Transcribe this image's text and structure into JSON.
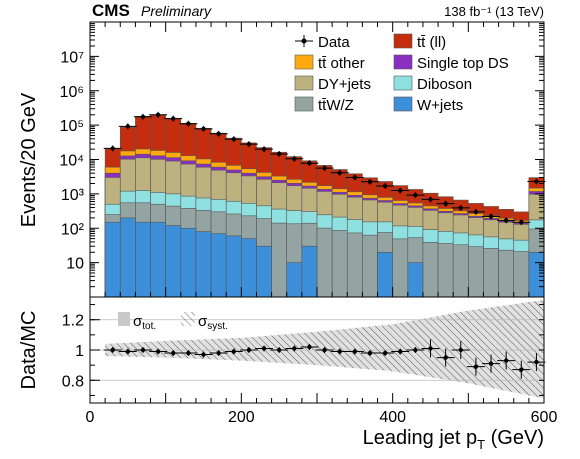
{
  "header": {
    "cms": "CMS",
    "preliminary": "Preliminary",
    "lumi": "138 fb⁻¹ (13 TeV)"
  },
  "colors": {
    "ttbar_ll": "#c42e0e",
    "single_top_ds": "#8a2fc0",
    "diboson": "#8fe0e0",
    "w_jets": "#3c8fd8",
    "tt_other": "#ffa90e",
    "dy_jets": "#bdb17f",
    "ttWZ": "#94a4a2",
    "unc_tot": "#c8c8c8"
  },
  "chart_data": [
    {
      "type": "bar",
      "stacked": true,
      "xlabel": "Leading jet pT (GeV)",
      "ylabel": "Events/20 GeV",
      "xlim": [
        0,
        600
      ],
      "ylim": [
        1,
        100000000
      ],
      "y_scale": "log",
      "y_tick_labels": [
        "10",
        "10²",
        "10³",
        "10⁴",
        "10⁵",
        "10⁶",
        "10⁷"
      ],
      "x_bin_edges": [
        20,
        40,
        60,
        80,
        100,
        120,
        140,
        160,
        180,
        200,
        220,
        240,
        260,
        280,
        300,
        320,
        340,
        360,
        380,
        400,
        420,
        440,
        460,
        480,
        500,
        520,
        540,
        560,
        580,
        600
      ],
      "legend_position": "top-right",
      "series": [
        {
          "name": "W+jets",
          "color": "#3c8fd8",
          "values": [
            150,
            200,
            150,
            150,
            120,
            100,
            80,
            70,
            60,
            50,
            30,
            1,
            10,
            30,
            1,
            1,
            1,
            1,
            20,
            1,
            10,
            1,
            1,
            1,
            1,
            1,
            1,
            1,
            20
          ]
        },
        {
          "name": "tt̄W/Z",
          "color": "#94a4a2",
          "values": [
            100,
            350,
            400,
            350,
            320,
            280,
            250,
            230,
            200,
            180,
            160,
            140,
            125,
            110,
            100,
            85,
            72,
            62,
            55,
            48,
            43,
            38,
            35,
            32,
            28,
            25,
            22,
            20,
            75
          ]
        },
        {
          "name": "Diboson",
          "color": "#8fe0e0",
          "values": [
            250,
            650,
            700,
            600,
            560,
            480,
            430,
            390,
            350,
            300,
            260,
            220,
            190,
            165,
            145,
            125,
            105,
            90,
            78,
            68,
            60,
            52,
            45,
            40,
            35,
            30,
            26,
            24,
            80
          ]
        },
        {
          "name": "DY+jets",
          "color": "#bdb17f",
          "values": [
            2500,
            9000,
            10000,
            9000,
            8000,
            6500,
            5200,
            4200,
            3500,
            2800,
            2200,
            1750,
            1400,
            1150,
            930,
            760,
            620,
            510,
            420,
            350,
            290,
            240,
            200,
            170,
            140,
            120,
            100,
            85,
            800
          ]
        },
        {
          "name": "Single top DS",
          "color": "#8a2fc0",
          "values": [
            1000,
            2500,
            3000,
            2700,
            2300,
            1800,
            1400,
            1100,
            850,
            650,
            500,
            380,
            300,
            230,
            180,
            140,
            110,
            85,
            68,
            55,
            45,
            37,
            30,
            25,
            20,
            17,
            14,
            12,
            200
          ]
        },
        {
          "name": "tt̄ other",
          "color": "#ffa90e",
          "values": [
            2000,
            5000,
            6000,
            5500,
            4700,
            3800,
            3000,
            2300,
            1800,
            1400,
            1050,
            800,
            620,
            480,
            380,
            300,
            240,
            190,
            150,
            120,
            95,
            78,
            65,
            53,
            44,
            38,
            32,
            27,
            300
          ]
        },
        {
          "name": "tt̄ (ll)",
          "color": "#c42e0e",
          "values": [
            15000,
            70000,
            160000,
            180000,
            140000,
            100000,
            70000,
            50000,
            35000,
            25000,
            18000,
            13000,
            9500,
            7000,
            5000,
            3700,
            2700,
            2000,
            1500,
            1100,
            800,
            600,
            450,
            340,
            260,
            200,
            160,
            130,
            1500
          ]
        }
      ],
      "data": {
        "name": "Data",
        "x": [
          30,
          50,
          70,
          90,
          110,
          130,
          150,
          170,
          190,
          210,
          230,
          250,
          270,
          290,
          310,
          330,
          350,
          370,
          390,
          410,
          430,
          450,
          470,
          490,
          510,
          530,
          550,
          570,
          590
        ],
        "y": [
          21000,
          92000,
          175000,
          200000,
          155000,
          110000,
          78000,
          56000,
          39000,
          28000,
          20000,
          14500,
          10500,
          7800,
          5600,
          4100,
          3000,
          2250,
          1700,
          1250,
          920,
          690,
          520,
          390,
          300,
          220,
          170,
          150,
          2300
        ]
      }
    },
    {
      "type": "scatter",
      "xlabel": "Leading jet pT (GeV)",
      "ylabel": "Data/MC",
      "xlim": [
        0,
        600
      ],
      "ylim": [
        0.65,
        1.35
      ],
      "x_ticks": [
        0,
        200,
        400,
        600
      ],
      "y_ticks": [
        0.8,
        1,
        1.2
      ],
      "legend": [
        "σtot.",
        "σsyst."
      ],
      "ratio": {
        "x": [
          30,
          50,
          70,
          90,
          110,
          130,
          150,
          170,
          190,
          210,
          230,
          250,
          270,
          290,
          310,
          330,
          350,
          370,
          390,
          410,
          430,
          450,
          470,
          490,
          510,
          530,
          550,
          570,
          590
        ],
        "y": [
          1.0,
          0.99,
          1.0,
          0.99,
          0.98,
          0.98,
          0.97,
          0.98,
          0.99,
          1.0,
          1.01,
          1.0,
          1.01,
          1.02,
          1.0,
          0.99,
          0.99,
          0.98,
          0.98,
          0.99,
          1.0,
          1.01,
          0.95,
          1.0,
          0.89,
          0.91,
          0.93,
          0.87,
          0.92
        ]
      },
      "syst_band": {
        "x": [
          20,
          100,
          200,
          300,
          400,
          500,
          600
        ],
        "low": [
          0.96,
          0.95,
          0.93,
          0.9,
          0.86,
          0.78,
          0.68
        ],
        "high": [
          1.04,
          1.06,
          1.08,
          1.12,
          1.17,
          1.26,
          1.33
        ]
      }
    }
  ]
}
